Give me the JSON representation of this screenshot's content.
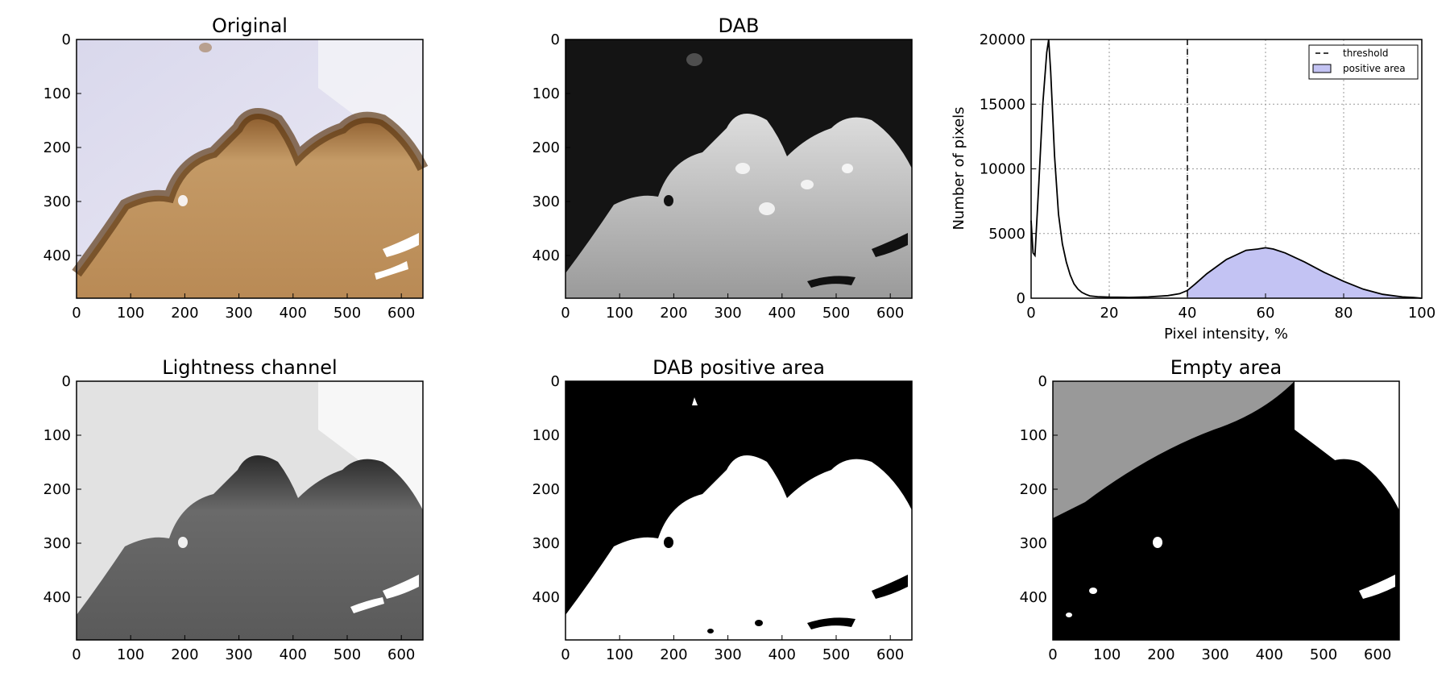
{
  "figure": {
    "panels": [
      {
        "title": "Original",
        "kind": "image",
        "style": "he_stain",
        "xticks": [
          "0",
          "100",
          "200",
          "300",
          "400",
          "500",
          "600"
        ],
        "yticks": [
          "0",
          "100",
          "200",
          "300",
          "400"
        ]
      },
      {
        "title": "DAB",
        "kind": "image",
        "style": "dab_gray",
        "xticks": [
          "0",
          "100",
          "200",
          "300",
          "400",
          "500",
          "600"
        ],
        "yticks": [
          "0",
          "100",
          "200",
          "300",
          "400"
        ]
      },
      {
        "title": "Lightness channel",
        "kind": "image",
        "style": "lightness",
        "xticks": [
          "0",
          "100",
          "200",
          "300",
          "400",
          "500",
          "600"
        ],
        "yticks": [
          "0",
          "100",
          "200",
          "300",
          "400"
        ]
      },
      {
        "title": "DAB positive area",
        "kind": "image",
        "style": "mask_positive",
        "xticks": [
          "0",
          "100",
          "200",
          "300",
          "400",
          "500",
          "600"
        ],
        "yticks": [
          "0",
          "100",
          "200",
          "300",
          "400"
        ]
      },
      {
        "title": "Empty area",
        "kind": "image",
        "style": "mask_empty",
        "xticks": [
          "0",
          "100",
          "200",
          "300",
          "400",
          "500",
          "600"
        ],
        "yticks": [
          "0",
          "100",
          "200",
          "300",
          "400"
        ]
      }
    ]
  },
  "chart_data": {
    "type": "line",
    "xlabel": "Pixel intensity, %",
    "ylabel": "Number of pixels",
    "xlim": [
      0,
      100
    ],
    "ylim": [
      0,
      20000
    ],
    "xticks": [
      0,
      20,
      40,
      60,
      80,
      100
    ],
    "yticks": [
      0,
      5000,
      10000,
      15000,
      20000
    ],
    "grid": true,
    "legend_position": "top-right",
    "threshold": {
      "name": "threshold",
      "x": 40,
      "color": "#000000"
    },
    "fill": {
      "name": "positive area",
      "from_x": 40,
      "color": "#c3c3f3"
    },
    "series": [
      {
        "color": "#000000",
        "x": [
          0,
          0.5,
          1,
          2,
          3,
          4,
          4.5,
          5,
          6,
          7,
          8,
          9,
          10,
          11,
          12,
          13,
          14,
          15,
          17,
          20,
          25,
          30,
          35,
          38,
          40,
          42,
          45,
          50,
          55,
          58,
          60,
          62,
          65,
          70,
          75,
          80,
          85,
          90,
          95,
          98,
          100
        ],
        "y": [
          6000,
          3500,
          3300,
          9000,
          15000,
          19000,
          20000,
          17500,
          11000,
          6500,
          4200,
          2800,
          1800,
          1100,
          700,
          450,
          300,
          180,
          120,
          80,
          60,
          100,
          200,
          350,
          600,
          1100,
          1900,
          3000,
          3700,
          3800,
          3900,
          3800,
          3500,
          2800,
          2000,
          1300,
          700,
          300,
          100,
          50,
          0
        ]
      }
    ]
  }
}
